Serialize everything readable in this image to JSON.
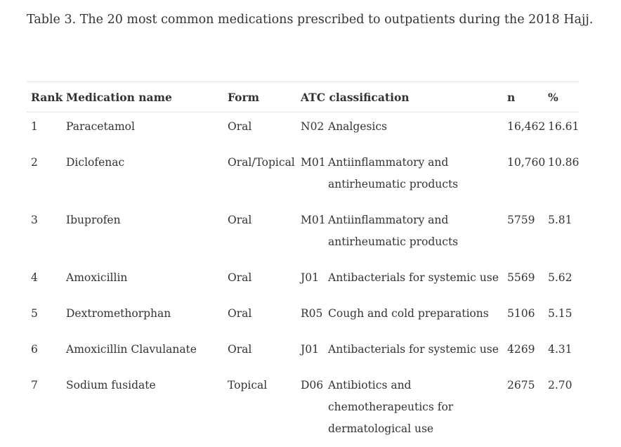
{
  "caption": "Table 3. The 20 most common medications prescribed to outpatients during the 2018 Hajj.",
  "headers": {
    "rank": "Rank",
    "name": "Medication name",
    "form": "Form",
    "atc": "ATC classification",
    "n": "n",
    "pct": "%"
  },
  "rows": [
    {
      "rank": "1",
      "name": "Paracetamol",
      "form": "Oral",
      "code": "N02",
      "desc": "Analgesics",
      "n": "16,462",
      "pct": "16.61"
    },
    {
      "rank": "2",
      "name": "Diclofenac",
      "form": "Oral/Topical",
      "code": "M01",
      "desc": "Antiinflammatory and antirheumatic products",
      "n": "10,760",
      "pct": "10.86"
    },
    {
      "rank": "3",
      "name": "Ibuprofen",
      "form": "Oral",
      "code": "M01",
      "desc": "Antiinflammatory and antirheumatic products",
      "n": "5759",
      "pct": "5.81"
    },
    {
      "rank": "4",
      "name": "Amoxicillin",
      "form": "Oral",
      "code": "J01",
      "desc": "Antibacterials for systemic use",
      "n": "5569",
      "pct": "5.62"
    },
    {
      "rank": "5",
      "name": "Dextromethorphan",
      "form": "Oral",
      "code": "R05",
      "desc": "Cough and cold preparations",
      "n": "5106",
      "pct": "5.15"
    },
    {
      "rank": "6",
      "name": "Amoxicillin Clavulanate",
      "form": "Oral",
      "code": "J01",
      "desc": "Antibacterials for systemic use",
      "n": "4269",
      "pct": "4.31"
    },
    {
      "rank": "7",
      "name": "Sodium fusidate",
      "form": "Topical",
      "code": "D06",
      "desc": "Antibiotics and chemotherapeutics for dermatological use",
      "n": "2675",
      "pct": "2.70"
    }
  ]
}
